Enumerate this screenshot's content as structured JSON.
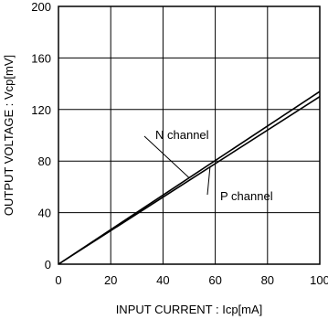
{
  "chart_data": {
    "type": "line",
    "xlabel": "INPUT CURRENT : Icp[mA]",
    "ylabel": "OUTPUT VOLTAGE : Vcp[mV]",
    "xlim": [
      0,
      100
    ],
    "ylim": [
      0,
      200
    ],
    "xticks": [
      "0",
      "20",
      "40",
      "60",
      "80",
      "100"
    ],
    "yticks": [
      "0",
      "40",
      "80",
      "120",
      "160",
      "200"
    ],
    "grid": true,
    "series": [
      {
        "name": "N channel",
        "x": [
          0,
          100
        ],
        "y": [
          0,
          134
        ]
      },
      {
        "name": "P channel",
        "x": [
          0,
          100
        ],
        "y": [
          0,
          130
        ]
      }
    ],
    "annotations": [
      {
        "text": "N channel",
        "series": "N channel",
        "at_x": 50
      },
      {
        "text": "P channel",
        "series": "P channel",
        "at_x": 58
      }
    ]
  }
}
